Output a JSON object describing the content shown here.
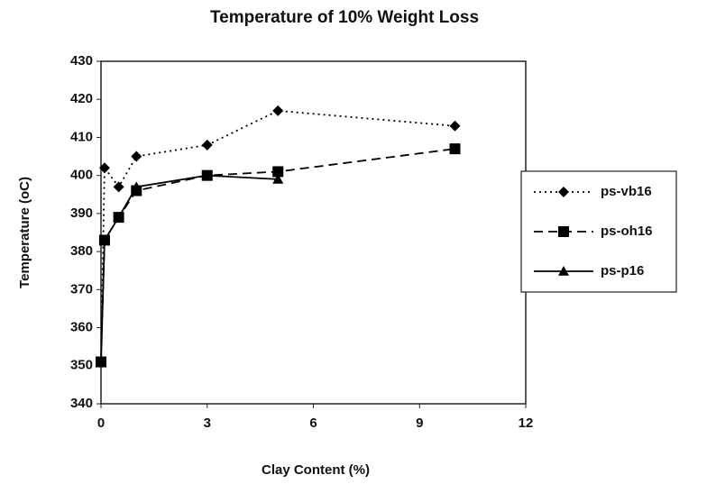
{
  "chart_data": {
    "type": "line",
    "title": "Temperature of 10% Weight Loss",
    "x_label": "Clay Content (%)",
    "y_label": "Temperature (oC)",
    "xlim": [
      0,
      12
    ],
    "xticks": [
      0,
      3,
      6,
      9,
      12
    ],
    "ylim": [
      340,
      430
    ],
    "yticks": [
      340,
      350,
      360,
      370,
      380,
      390,
      400,
      410,
      420,
      430
    ],
    "legend": "right",
    "series": [
      {
        "name": "ps-vb16",
        "color": "#000000",
        "marker": "diamond",
        "dash": "dotted",
        "x": [
          0,
          0.1,
          0.5,
          1,
          3,
          5,
          10
        ],
        "values": [
          351,
          402,
          397,
          405,
          408,
          417,
          413
        ]
      },
      {
        "name": "ps-oh16",
        "color": "#000000",
        "marker": "square",
        "dash": "dashed",
        "x": [
          0,
          0.1,
          0.5,
          1,
          3,
          5,
          10
        ],
        "values": [
          351,
          383,
          389,
          396,
          400,
          401,
          407
        ]
      },
      {
        "name": "ps-p16",
        "color": "#000000",
        "marker": "triangle",
        "dash": "solid",
        "x": [
          0,
          0.1,
          0.5,
          1,
          3,
          5
        ],
        "values": [
          351,
          383,
          389,
          397,
          400,
          399
        ]
      }
    ]
  }
}
